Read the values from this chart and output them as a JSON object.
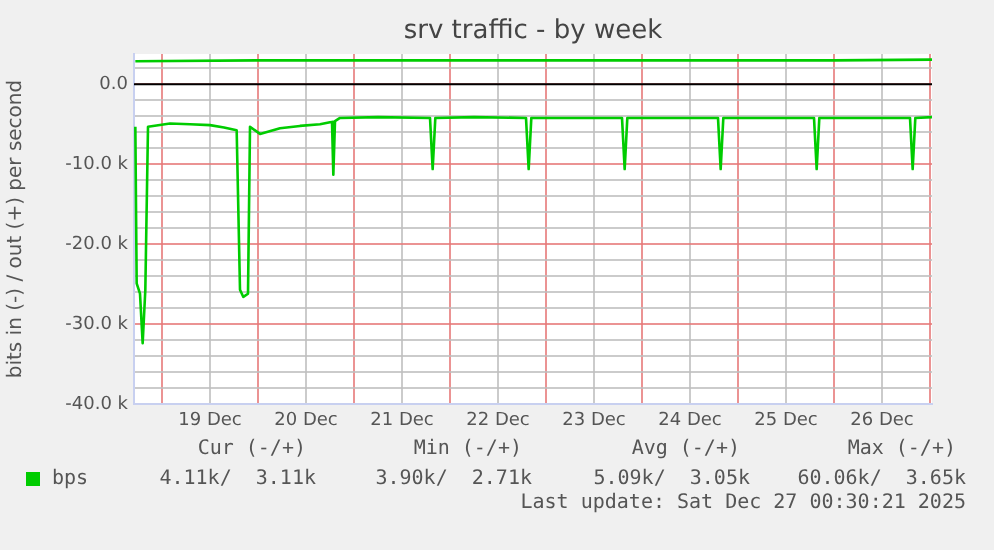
{
  "chart_data": {
    "type": "line",
    "title": "srv traffic - by week",
    "ylabel": "bits in (-) / out (+) per second",
    "xlim": [
      "2025-12-18T17:00",
      "2025-12-27T00:30"
    ],
    "xticks": [
      {
        "value": "2025-12-19T00:00",
        "label": null
      },
      {
        "value": "2025-12-19T12:00",
        "label": "19 Dec"
      },
      {
        "value": "2025-12-20T00:00",
        "label": null
      },
      {
        "value": "2025-12-20T12:00",
        "label": "20 Dec"
      },
      {
        "value": "2025-12-21T00:00",
        "label": null
      },
      {
        "value": "2025-12-21T12:00",
        "label": "21 Dec"
      },
      {
        "value": "2025-12-22T00:00",
        "label": null
      },
      {
        "value": "2025-12-22T12:00",
        "label": "22 Dec"
      },
      {
        "value": "2025-12-23T00:00",
        "label": null
      },
      {
        "value": "2025-12-23T12:00",
        "label": "23 Dec"
      },
      {
        "value": "2025-12-24T00:00",
        "label": null
      },
      {
        "value": "2025-12-24T12:00",
        "label": "24 Dec"
      },
      {
        "value": "2025-12-25T00:00",
        "label": null
      },
      {
        "value": "2025-12-25T12:00",
        "label": "25 Dec"
      },
      {
        "value": "2025-12-26T00:00",
        "label": null
      },
      {
        "value": "2025-12-26T12:00",
        "label": "26 Dec"
      },
      {
        "value": "2025-12-27T00:00",
        "label": null
      }
    ],
    "ylim": [
      -40000,
      3800
    ],
    "yticks": [
      {
        "value": -40000,
        "label": "-40.0 k"
      },
      {
        "value": -38000,
        "label": null
      },
      {
        "value": -36000,
        "label": null
      },
      {
        "value": -34000,
        "label": null
      },
      {
        "value": -32000,
        "label": null
      },
      {
        "value": -30000,
        "label": "-30.0 k"
      },
      {
        "value": -28000,
        "label": null
      },
      {
        "value": -26000,
        "label": null
      },
      {
        "value": -24000,
        "label": null
      },
      {
        "value": -22000,
        "label": null
      },
      {
        "value": -20000,
        "label": "-20.0 k"
      },
      {
        "value": -18000,
        "label": null
      },
      {
        "value": -16000,
        "label": null
      },
      {
        "value": -14000,
        "label": null
      },
      {
        "value": -12000,
        "label": null
      },
      {
        "value": -10000,
        "label": "-10.0 k"
      },
      {
        "value": -8000,
        "label": null
      },
      {
        "value": -6000,
        "label": null
      },
      {
        "value": -4000,
        "label": null
      },
      {
        "value": -2000,
        "label": null
      },
      {
        "value": 0,
        "label": "0.0"
      },
      {
        "value": 2000,
        "label": null
      }
    ],
    "grid": true,
    "legend": "bottom left",
    "marker": "none",
    "line_style": "solid",
    "ref_lines": [
      {
        "axis": "y",
        "value": 0,
        "color": "#000000"
      }
    ],
    "series": [
      {
        "name": "bps",
        "color": "#00cc00",
        "x": [
          "2025-12-18T17:20",
          "2025-12-18T17:40",
          "2025-12-18T18:30",
          "2025-12-18T19:10",
          "2025-12-18T19:50",
          "2025-12-18T20:30",
          "2025-12-19T02:00",
          "2025-12-19T07:00",
          "2025-12-19T12:00",
          "2025-12-19T15:30",
          "2025-12-19T18:40",
          "2025-12-19T19:30",
          "2025-12-19T20:20",
          "2025-12-19T21:30",
          "2025-12-19T22:00",
          "2025-12-20T00:30",
          "2025-12-20T05:30",
          "2025-12-20T10:30",
          "2025-12-20T15:30",
          "2025-12-20T18:00",
          "2025-12-20T18:30",
          "2025-12-20T18:50",
          "2025-12-20T19:15",
          "2025-12-20T20:30",
          "2025-12-21T06:00",
          "2025-12-21T19:00",
          "2025-12-21T19:40",
          "2025-12-21T20:20",
          "2025-12-22T06:00",
          "2025-12-22T19:00",
          "2025-12-22T19:40",
          "2025-12-22T20:20",
          "2025-12-23T06:00",
          "2025-12-23T19:00",
          "2025-12-23T19:40",
          "2025-12-23T20:20",
          "2025-12-24T06:00",
          "2025-12-24T19:00",
          "2025-12-24T19:40",
          "2025-12-24T20:20",
          "2025-12-25T06:00",
          "2025-12-25T19:00",
          "2025-12-25T19:40",
          "2025-12-25T20:20",
          "2025-12-26T06:00",
          "2025-12-26T19:00",
          "2025-12-26T19:40",
          "2025-12-26T20:20",
          "2025-12-27T00:30"
        ],
        "values": [
          -5300,
          -24900,
          -26200,
          -32400,
          -25700,
          -5300,
          -4900,
          -5000,
          -5100,
          -5400,
          -5750,
          -25700,
          -26600,
          -26200,
          -5300,
          -6200,
          -5500,
          -5200,
          -5000,
          -4750,
          -4700,
          -11300,
          -4600,
          -4200,
          -4100,
          -4200,
          -10600,
          -4200,
          -4100,
          -4200,
          -10600,
          -4200,
          -4200,
          -4200,
          -10600,
          -4200,
          -4200,
          -4200,
          -10600,
          -4200,
          -4200,
          -4200,
          -10600,
          -4200,
          -4200,
          -4200,
          -10600,
          -4200,
          -4100
        ]
      },
      {
        "color": "#00cc00",
        "x": [
          "2025-12-18T17:20",
          "2025-12-20T00:00",
          "2025-12-22T00:00",
          "2025-12-24T00:00",
          "2025-12-26T00:00",
          "2025-12-27T00:30"
        ],
        "values": [
          2900,
          3000,
          3000,
          3000,
          3000,
          3100
        ]
      }
    ],
    "annotations": [
      "Cur (-/+)",
      "Min (-/+)",
      "Avg (-/+)",
      "Max (-/+)",
      "4.11k/  3.11k",
      "3.90k/  2.71k",
      "5.09k/  3.05k",
      "60.06k/  3.65k",
      "Last update: Sat Dec 27 00:30:21 2025"
    ]
  }
}
